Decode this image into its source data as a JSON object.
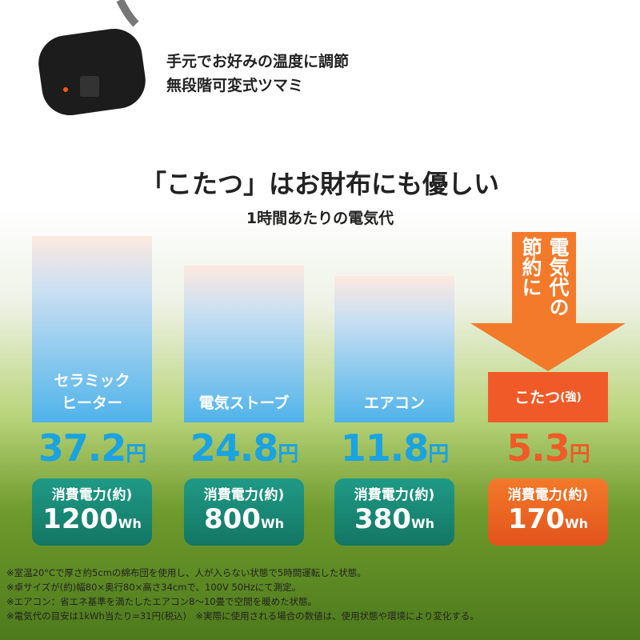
{
  "header": {
    "lines": [
      "手元でお好みの温度に調節",
      "無段階可変式ツマミ"
    ]
  },
  "title": "「こたつ」はお財布にも優しい",
  "subtitle": "1時間あたりの電気代",
  "arrow_text": {
    "columns": [
      "電気代の",
      "節約に"
    ]
  },
  "items": [
    {
      "label_lines": [
        "セラミック",
        "ヒーター"
      ],
      "cost": "37.2",
      "cost_unit": "円",
      "power_label": "消費電力(約)",
      "power": "1200",
      "power_unit": "Wh"
    },
    {
      "label_lines": [
        "電気ストーブ"
      ],
      "cost": "24.8",
      "cost_unit": "円",
      "power_label": "消費電力(約)",
      "power": "800",
      "power_unit": "Wh"
    },
    {
      "label_lines": [
        "エアコン"
      ],
      "cost": "11.8",
      "cost_unit": "円",
      "power_label": "消費電力(約)",
      "power": "380",
      "power_unit": "Wh"
    },
    {
      "label_lines": [
        "こたつ",
        "(強)"
      ],
      "cost": "5.3",
      "cost_unit": "円",
      "power_label": "消費電力(約)",
      "power": "170",
      "power_unit": "Wh"
    }
  ],
  "notes": [
    "※室温20°Cで厚さ約5cmの綿布団を使用し、人が入らない状態で5時間運転した状態。",
    "※卓サイズが(約)幅80×奥行80×高さ34cmで、100V 50Hzにて測定。",
    "※エアコン：省エネ基準を満たしたエアコン8〜10畳で空間を暖めた状態。",
    "※電気代の目安は1kWh当たり=31円(税込)　※実際に使用される場合の数値は、使用状態や環境により変化する。"
  ]
}
